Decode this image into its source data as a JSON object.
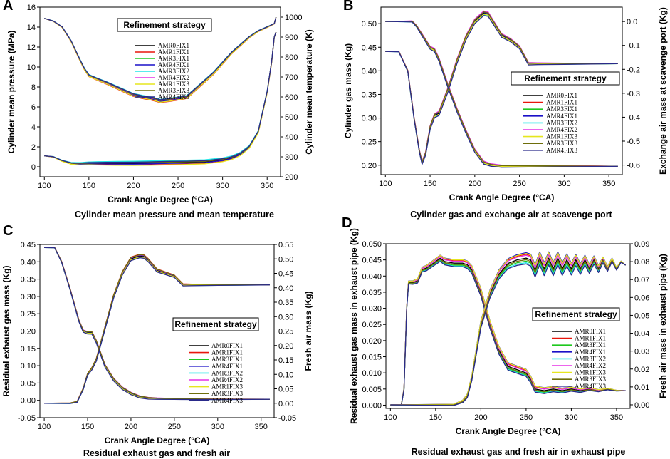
{
  "figure": {
    "colors": [
      "#000000",
      "#e8160c",
      "#1ec81e",
      "#1a10c8",
      "#22e6e6",
      "#e632e6",
      "#e6e61e",
      "#6e6e0a",
      "#2a2a8a"
    ]
  },
  "chart_data": [
    {
      "id": "A",
      "type": "line",
      "panel_letter": "A",
      "caption": "Cylinder mean pressure and mean temperature",
      "xlabel": "Crank Angle Degree (°CA)",
      "ylabel": "Cylinder mean pressure (MPa)",
      "y2label": "Cylinder mean temperature (K)",
      "xlim": [
        95,
        365
      ],
      "xticks": [
        100,
        150,
        200,
        250,
        300,
        350
      ],
      "ylim": [
        -1,
        16
      ],
      "yticks": [
        0,
        2,
        4,
        6,
        8,
        10,
        12,
        14,
        16
      ],
      "y2lim": [
        200,
        1050
      ],
      "y2ticks": [
        200,
        300,
        400,
        500,
        600,
        700,
        800,
        900,
        1000
      ],
      "legend": {
        "title": "Refinement strategy",
        "entries": [
          "AMR0FIX1",
          "AMR1FIX1",
          "AMR3FIX1",
          "AMR4FIX1",
          "AMR3FIX2",
          "AMR4FIX2",
          "AMR1FIX3",
          "AMR3FIX3",
          "AMR4FIX3"
        ]
      },
      "series": [
        {
          "name": "temperature",
          "axis": "y2",
          "x": [
            100,
            110,
            120,
            130,
            140,
            145,
            150,
            160,
            170,
            180,
            190,
            200,
            210,
            220,
            230,
            240,
            250,
            260,
            270,
            280,
            290,
            300,
            310,
            320,
            330,
            340,
            350,
            358,
            360
          ],
          "values": [
            994,
            980,
            950,
            880,
            785,
            740,
            707,
            688,
            670,
            650,
            630,
            610,
            600,
            592,
            580,
            585,
            592,
            600,
            640,
            680,
            720,
            770,
            820,
            860,
            900,
            930,
            950,
            967,
            1000
          ]
        },
        {
          "name": "pressure",
          "axis": "y1",
          "x": [
            100,
            110,
            120,
            130,
            140,
            150,
            160,
            170,
            180,
            200,
            220,
            230,
            240,
            260,
            280,
            300,
            310,
            320,
            330,
            340,
            350,
            355,
            358,
            360
          ],
          "values": [
            1.1,
            1.0,
            0.6,
            0.35,
            0.3,
            0.35,
            0.35,
            0.35,
            0.35,
            0.35,
            0.38,
            0.4,
            0.42,
            0.45,
            0.5,
            0.7,
            0.9,
            1.3,
            2.0,
            3.5,
            7.5,
            10.5,
            13.0,
            13.5
          ]
        }
      ]
    },
    {
      "id": "B",
      "type": "line",
      "panel_letter": "B",
      "caption": "Cylinder gas  and exchange air at scavenge port",
      "xlabel": "Crank Angle Degree (°CA)",
      "ylabel": "Cylinder gas mass (Kg)",
      "y2label": "Exchange air mass at scavenge port (Kg)",
      "xlim": [
        95,
        365
      ],
      "xticks": [
        100,
        150,
        200,
        250,
        300,
        350
      ],
      "ylim": [
        0.18,
        0.535
      ],
      "yticks": [
        0.2,
        0.25,
        0.3,
        0.35,
        0.4,
        0.45,
        0.5
      ],
      "y2lim": [
        -0.64,
        0.06
      ],
      "y2ticks": [
        -0.6,
        -0.5,
        -0.4,
        -0.3,
        -0.2,
        -0.1,
        0.0
      ],
      "legend": {
        "title": "Refinement strategy",
        "entries": [
          "AMR0FIX1",
          "AMR1FIX1",
          "AMR3FIX1",
          "AMR4FIX1",
          "AMR3FIX2",
          "AMR4FIX2",
          "AMR1FIX3",
          "AMR3FIX3",
          "AMR4FIX3"
        ]
      },
      "series": [
        {
          "name": "cylinder gas mass",
          "axis": "y1",
          "x": [
            100,
            115,
            125,
            132,
            138,
            141,
            145,
            150,
            155,
            160,
            170,
            180,
            190,
            200,
            210,
            215,
            220,
            230,
            240,
            250,
            260,
            270,
            300,
            330,
            360
          ],
          "values": [
            0.441,
            0.441,
            0.4,
            0.3,
            0.23,
            0.205,
            0.225,
            0.28,
            0.305,
            0.31,
            0.36,
            0.42,
            0.47,
            0.505,
            0.522,
            0.52,
            0.505,
            0.475,
            0.465,
            0.45,
            0.415,
            0.415,
            0.415,
            0.415,
            0.415
          ]
        },
        {
          "name": "exchange air mass",
          "axis": "y2",
          "x": [
            100,
            120,
            130,
            135,
            140,
            145,
            150,
            155,
            160,
            170,
            180,
            190,
            200,
            210,
            218,
            230,
            260,
            300,
            330,
            360
          ],
          "values": [
            0.0,
            0.0,
            0.0,
            -0.02,
            -0.05,
            -0.08,
            -0.11,
            -0.12,
            -0.16,
            -0.27,
            -0.37,
            -0.46,
            -0.54,
            -0.59,
            -0.6,
            -0.605,
            -0.605,
            -0.605,
            -0.605,
            -0.605
          ]
        }
      ]
    },
    {
      "id": "C",
      "type": "line",
      "panel_letter": "C",
      "caption": "Residual exhaust gas and fresh air",
      "xlabel": "Crank Angle Degree (°CA)",
      "ylabel": "Residual exhaust gas mass (Kg)",
      "y2label": "Fresh air mass (Kg)",
      "xlim": [
        95,
        365
      ],
      "xticks": [
        100,
        150,
        200,
        250,
        300,
        350
      ],
      "ylim": [
        -0.05,
        0.45
      ],
      "yticks": [
        -0.05,
        0.0,
        0.05,
        0.1,
        0.15,
        0.2,
        0.25,
        0.3,
        0.35,
        0.4,
        0.45
      ],
      "y2lim": [
        -0.05,
        0.55
      ],
      "y2ticks": [
        -0.05,
        0.0,
        0.05,
        0.1,
        0.15,
        0.2,
        0.25,
        0.3,
        0.35,
        0.4,
        0.45,
        0.5,
        0.55
      ],
      "legend": {
        "title": "Refinement strategy",
        "entries": [
          "AMR0FIX1",
          "AMR1FIX1",
          "AMR3FIX1",
          "AMR4FIX1",
          "AMR3FIX2",
          "AMR4FIX2",
          "AMR1FIX3",
          "AMR3FIX3",
          "AMR4FIX3"
        ]
      },
      "series": [
        {
          "name": "residual exhaust gas",
          "axis": "y1",
          "x": [
            100,
            112,
            120,
            130,
            140,
            145,
            150,
            155,
            160,
            170,
            180,
            190,
            200,
            210,
            220,
            230,
            250,
            300,
            360
          ],
          "values": [
            0.441,
            0.441,
            0.4,
            0.32,
            0.23,
            0.2,
            0.195,
            0.195,
            0.17,
            0.1,
            0.06,
            0.035,
            0.02,
            0.01,
            0.006,
            0.005,
            0.004,
            0.003,
            0.003
          ]
        },
        {
          "name": "fresh air",
          "axis": "y2",
          "x": [
            100,
            130,
            138,
            145,
            150,
            155,
            160,
            170,
            180,
            190,
            200,
            210,
            215,
            220,
            230,
            240,
            250,
            260,
            270,
            300,
            330,
            360
          ],
          "values": [
            0.0,
            0.0,
            0.005,
            0.05,
            0.1,
            0.12,
            0.15,
            0.26,
            0.37,
            0.45,
            0.5,
            0.51,
            0.508,
            0.495,
            0.46,
            0.45,
            0.44,
            0.41,
            0.41,
            0.41,
            0.41,
            0.41
          ]
        }
      ]
    },
    {
      "id": "D",
      "type": "line",
      "panel_letter": "D",
      "caption": "Residual exhaust gas and fresh air in exhaust pipe",
      "xlabel": "Crank Angle Degree (°CA)",
      "ylabel": "Residual exhaust gas mass in exhaust pipe (Kg)",
      "y2label": "Fresh air mass in exhaust pipe (Kg)",
      "xlim": [
        95,
        365
      ],
      "xticks": [
        100,
        150,
        200,
        250,
        300,
        350
      ],
      "ylim": [
        -0.001,
        0.05
      ],
      "yticks": [
        0.0,
        0.005,
        0.01,
        0.015,
        0.02,
        0.025,
        0.03,
        0.035,
        0.04,
        0.045,
        0.05
      ],
      "y2lim": [
        -0.002,
        0.09
      ],
      "y2ticks": [
        0.0,
        0.01,
        0.02,
        0.03,
        0.04,
        0.05,
        0.06,
        0.07,
        0.08,
        0.09
      ],
      "legend": {
        "title": "Refinement strategy",
        "entries": [
          "AMR0FIX1",
          "AMR1FIX1",
          "AMR3FIX1",
          "AMR4FIX1",
          "AMR3FIX2",
          "AMR4FIX2",
          "AMR1FIX3",
          "AMR3FIX3",
          "AMR4FIX3"
        ]
      },
      "series": [
        {
          "name": "residual exhaust gas in pipe",
          "axis": "y1",
          "x": [
            100,
            112,
            115,
            118,
            120,
            125,
            130,
            135,
            140,
            150,
            155,
            160,
            170,
            180,
            185,
            190,
            200,
            210,
            220,
            230,
            240,
            250,
            255,
            260,
            270,
            280,
            290,
            300,
            310,
            320,
            330,
            340,
            350,
            360
          ],
          "values": [
            0.0,
            0.0,
            0.005,
            0.03,
            0.038,
            0.038,
            0.0385,
            0.042,
            0.0425,
            0.0445,
            0.0455,
            0.0445,
            0.044,
            0.044,
            0.0435,
            0.042,
            0.035,
            0.025,
            0.017,
            0.012,
            0.011,
            0.01,
            0.008,
            0.005,
            0.0045,
            0.005,
            0.0045,
            0.005,
            0.0045,
            0.005,
            0.0045,
            0.005,
            0.0045,
            0.0045
          ]
        },
        {
          "name": "fresh air in pipe",
          "axis": "y2",
          "x": [
            100,
            170,
            180,
            185,
            190,
            195,
            200,
            210,
            220,
            230,
            240,
            250,
            255,
            260,
            265,
            270,
            275,
            280,
            285,
            290,
            295,
            300,
            305,
            310,
            315,
            320,
            325,
            330,
            335,
            340,
            345,
            350,
            355,
            360
          ],
          "values": [
            0.0,
            0.0,
            0.002,
            0.005,
            0.015,
            0.03,
            0.045,
            0.062,
            0.073,
            0.079,
            0.081,
            0.082,
            0.081,
            0.075,
            0.082,
            0.076,
            0.082,
            0.076,
            0.082,
            0.076,
            0.081,
            0.076,
            0.081,
            0.076,
            0.081,
            0.076,
            0.081,
            0.076,
            0.081,
            0.076,
            0.081,
            0.076,
            0.08,
            0.078
          ]
        }
      ]
    }
  ]
}
